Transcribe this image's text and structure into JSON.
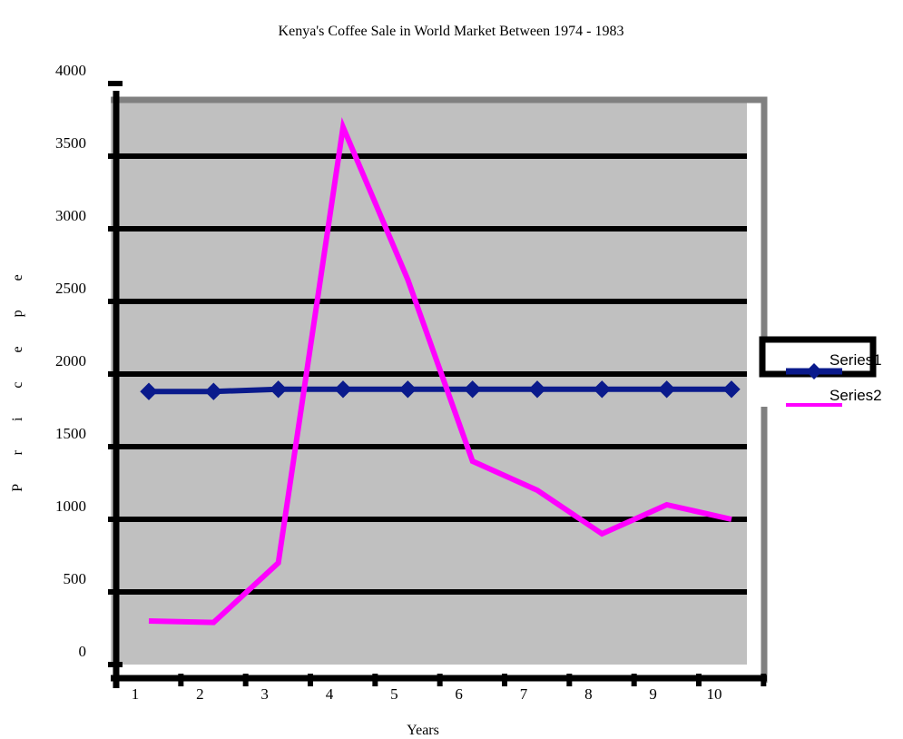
{
  "chart_data": {
    "type": "line",
    "title": "Kenya's Coffee Sale in World Market Between 1974 - 1983",
    "xlabel": "Years",
    "ylabel": "P r i c e  p e",
    "categories": [
      "1",
      "2",
      "3",
      "4",
      "5",
      "6",
      "7",
      "8",
      "9",
      "10"
    ],
    "y_ticks": [
      "0",
      "500",
      "1000",
      "1500",
      "2000",
      "2500",
      "3000",
      "3500",
      "4000"
    ],
    "ylim": [
      0,
      4000
    ],
    "grid": true,
    "legend_position": "right",
    "series": [
      {
        "name": "Series1",
        "values": [
          1880,
          1880,
          1895,
          1895,
          1895,
          1895,
          1895,
          1895,
          1895,
          1895
        ],
        "color": "#0a1a8c",
        "marker": "diamond"
      },
      {
        "name": "Series2",
        "values": [
          300,
          290,
          700,
          3700,
          2650,
          1400,
          1200,
          900,
          1100,
          1000
        ],
        "color": "#ff00ff",
        "marker": "none"
      }
    ]
  },
  "colors": {
    "plot_background": "#c0c0c0",
    "gridline": "#000000",
    "frame": "#808080"
  }
}
